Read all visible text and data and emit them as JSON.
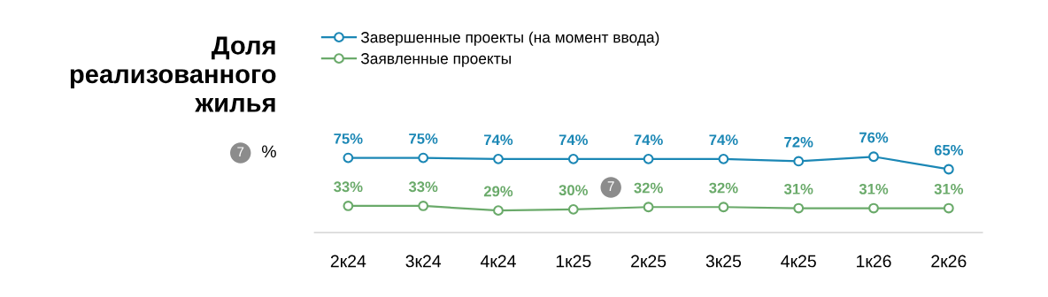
{
  "chart_data": {
    "type": "line",
    "title": "Доля\nреализованного\nжилья",
    "subtitle": "%",
    "annotations": [
      "7",
      "7"
    ],
    "categories": [
      "2к24",
      "3к24",
      "4к24",
      "1к25",
      "2к25",
      "3к25",
      "4к25",
      "1к26",
      "2к26"
    ],
    "series": [
      {
        "name": "Завершенные проекты (на момент ввода)",
        "color": "#1b87b5",
        "values": [
          75,
          75,
          74,
          74,
          74,
          74,
          72,
          76,
          65
        ],
        "value_labels": [
          "75%",
          "75%",
          "74%",
          "74%",
          "74%",
          "74%",
          "72%",
          "76%",
          "65%"
        ]
      },
      {
        "name": "Заявленные проекты",
        "color": "#6aaa6a",
        "values": [
          33,
          33,
          29,
          30,
          32,
          32,
          31,
          31,
          31
        ],
        "value_labels": [
          "33%",
          "33%",
          "29%",
          "30%",
          "32%",
          "32%",
          "31%",
          "31%",
          "31%"
        ]
      }
    ],
    "legend": "top left",
    "marker": "circle",
    "line_style": "solid",
    "grid": false
  }
}
